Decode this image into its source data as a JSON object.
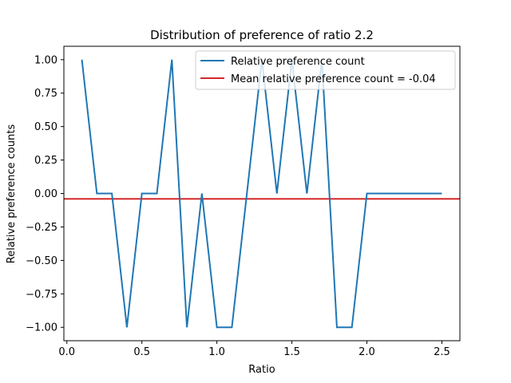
{
  "chart_data": {
    "type": "line",
    "title": "Distribution of preference of ratio 2.2",
    "xlabel": "Ratio",
    "ylabel": "Relative preference counts",
    "xlim": [
      -0.02,
      2.62
    ],
    "ylim": [
      -1.1,
      1.1
    ],
    "xticks": [
      0.0,
      0.5,
      1.0,
      1.5,
      2.0,
      2.5
    ],
    "xtick_labels": [
      "0.0",
      "0.5",
      "1.0",
      "1.5",
      "2.0",
      "2.5"
    ],
    "yticks": [
      1.0,
      0.75,
      0.5,
      0.25,
      0.0,
      -0.25,
      -0.5,
      -0.75,
      -1.0
    ],
    "ytick_labels": [
      "1.00",
      "0.75",
      "0.50",
      "0.25",
      "0.00",
      "−0.25",
      "−0.50",
      "−0.75",
      "−1.00"
    ],
    "grid": false,
    "legend_position": "top-right",
    "series": [
      {
        "name": "Relative preference count",
        "color": "#1f77b4",
        "x": [
          0.1,
          0.2,
          0.3,
          0.4,
          0.5,
          0.6,
          0.7,
          0.8,
          0.9,
          1.0,
          1.1,
          1.2,
          1.3,
          1.4,
          1.5,
          1.6,
          1.7,
          1.8,
          1.9,
          2.0,
          2.1,
          2.2,
          2.3,
          2.4,
          2.5
        ],
        "y": [
          1,
          0,
          0,
          -1,
          0,
          0,
          1,
          -1,
          0,
          -1,
          -1,
          0,
          1,
          0,
          1,
          0,
          1,
          -1,
          -1,
          0,
          0,
          0,
          0,
          0,
          0
        ]
      }
    ],
    "hlines": [
      {
        "name": "Mean relative preference count = -0.04",
        "color": "#d62728",
        "y": -0.04
      }
    ]
  }
}
